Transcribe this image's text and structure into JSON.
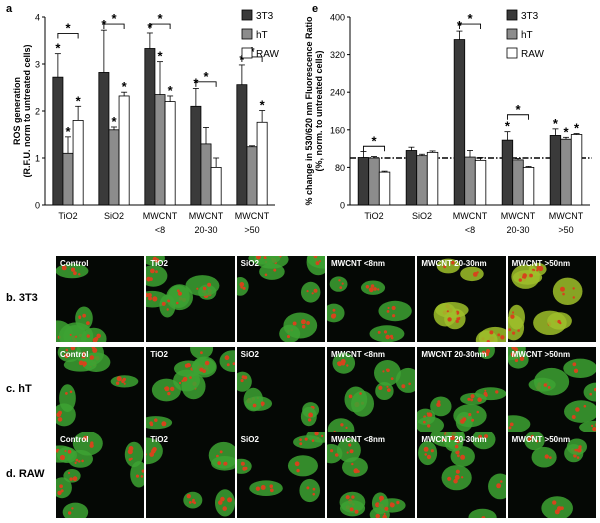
{
  "chart_data": [
    {
      "type": "bar",
      "panel_letter": "a",
      "ylabel_line1": "ROS generation",
      "ylabel_line2": "(R.F.U. norm to untreated cells)",
      "ylim": [
        0,
        4
      ],
      "yticks": [
        "0",
        "1",
        "2",
        "3",
        "4"
      ],
      "categories": [
        [
          "TiO2"
        ],
        [
          "SiO2"
        ],
        [
          "MWCNT",
          "<8"
        ],
        [
          "MWCNT",
          "20-30"
        ],
        [
          "MWCNT",
          ">50"
        ]
      ],
      "series": [
        {
          "name": "3T3",
          "color": "#3a3a3a",
          "values": [
            2.72,
            2.82,
            3.33,
            2.1,
            2.56
          ],
          "errors": [
            0.5,
            0.9,
            0.33,
            0.38,
            0.42
          ]
        },
        {
          "name": "hT",
          "color": "#8c8c8c",
          "values": [
            1.1,
            1.6,
            2.35,
            1.3,
            1.24
          ],
          "errors": [
            0.35,
            0.06,
            0.7,
            0.35,
            0.02
          ]
        },
        {
          "name": "RAW",
          "color": "#ffffff",
          "values": [
            1.8,
            2.32,
            2.2,
            0.8,
            1.76
          ],
          "errors": [
            0.3,
            0.08,
            0.12,
            0.2,
            0.25
          ]
        }
      ],
      "stars": [
        [
          1,
          1,
          1
        ],
        [
          1,
          1,
          1
        ],
        [
          1,
          1,
          1
        ],
        [
          1,
          0,
          0
        ],
        [
          1,
          0,
          1
        ]
      ],
      "brackets": [
        [
          0,
          0,
          2,
          3.65
        ],
        [
          1,
          0,
          2,
          3.85
        ],
        [
          2,
          0,
          2,
          3.85
        ],
        [
          3,
          0,
          2,
          2.62
        ],
        [
          4,
          0,
          2,
          3.15
        ]
      ],
      "bracket_label": "*",
      "star_label": "*"
    },
    {
      "type": "bar",
      "panel_letter": "e",
      "ylabel_line1": "% change in 530/620 nm Fluorescence Ratio",
      "ylabel_line2": "(%, norm. to untreated cells)",
      "ylim": [
        0,
        400
      ],
      "yticks": [
        "0",
        "80",
        "160",
        "240",
        "320",
        "400"
      ],
      "reference_line": 100,
      "categories": [
        [
          "TiO2"
        ],
        [
          "SiO2"
        ],
        [
          "MWCNT",
          "<8"
        ],
        [
          "MWCNT",
          "20-30"
        ],
        [
          "MWCNT",
          ">50"
        ]
      ],
      "series": [
        {
          "name": "3T3",
          "color": "#3a3a3a",
          "values": [
            101,
            116,
            352,
            138,
            148
          ],
          "errors": [
            13,
            7,
            18,
            18,
            14
          ]
        },
        {
          "name": "hT",
          "color": "#8c8c8c",
          "values": [
            100,
            105,
            102,
            96,
            140
          ],
          "errors": [
            3,
            3,
            14,
            3,
            4
          ]
        },
        {
          "name": "RAW",
          "color": "#ffffff",
          "values": [
            70,
            112,
            95,
            80,
            150
          ],
          "errors": [
            2,
            3,
            6,
            2,
            2
          ]
        }
      ],
      "stars": [
        [
          0,
          0,
          0
        ],
        [
          0,
          0,
          0
        ],
        [
          1,
          0,
          0
        ],
        [
          1,
          0,
          0
        ],
        [
          1,
          1,
          1
        ]
      ],
      "brackets": [
        [
          0,
          0,
          2,
          125
        ],
        [
          2,
          0,
          2,
          385
        ],
        [
          3,
          0,
          2,
          192
        ]
      ],
      "bracket_label": "*",
      "star_label": "*"
    }
  ],
  "micrographs": {
    "rows": [
      {
        "label": "b. 3T3",
        "cells": [
          "Control",
          "TiO2",
          "SiO2",
          "MWCNT <8nm",
          "MWCNT 20-30nm",
          "MWCNT >50nm"
        ]
      },
      {
        "label": "c. hT",
        "cells": [
          "Control",
          "TiO2",
          "SiO2",
          "MWCNT <8nm",
          "MWCNT 20-30nm",
          "MWCNT >50nm"
        ]
      },
      {
        "label": "d. RAW",
        "cells": [
          "Control",
          "TiO2",
          "SiO2",
          "MWCNT <8nm",
          "MWCNT 20-30nm",
          "MWCNT >50nm"
        ]
      }
    ]
  }
}
